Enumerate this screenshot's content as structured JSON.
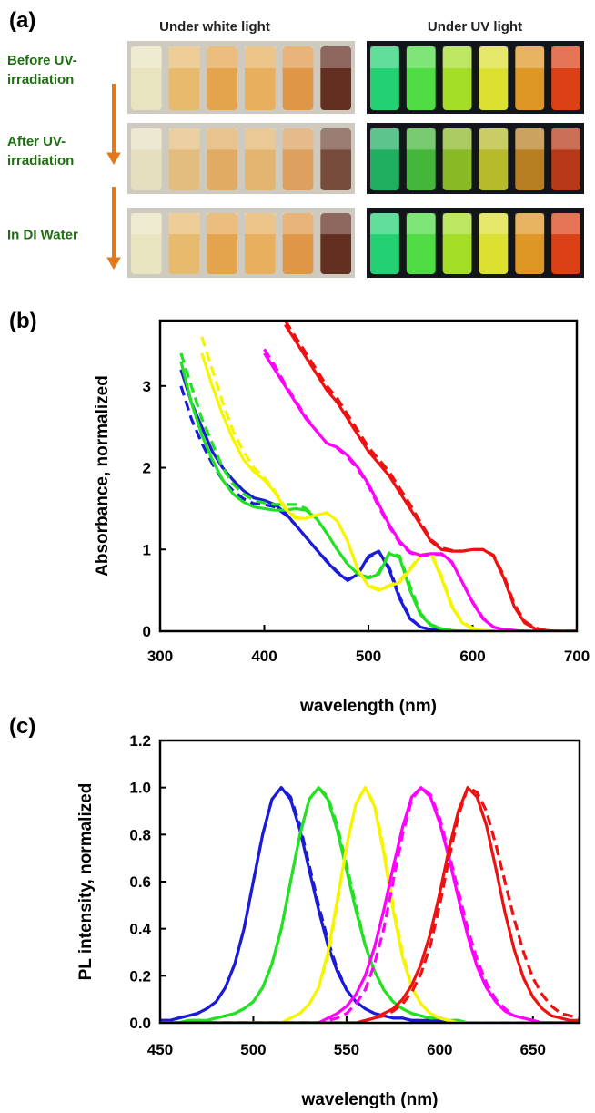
{
  "panel_a": {
    "label": "(a)",
    "column_titles": [
      "Under white light",
      "Under UV light"
    ],
    "row_labels": [
      [
        "Before UV-",
        "irradiation"
      ],
      [
        "After UV-",
        "irradiation"
      ],
      [
        "In DI Water"
      ]
    ]
  },
  "chart_data": [
    {
      "type": "line",
      "label": "(b)",
      "ylabel": "Absorbance, normalized",
      "xlabel": "wavelength (nm)",
      "xlim": [
        300,
        700
      ],
      "xticks": [
        300,
        400,
        500,
        600,
        700
      ],
      "ylim": [
        0,
        3.8
      ],
      "yticks": [
        0,
        1,
        2,
        3
      ],
      "x": [
        310,
        320,
        330,
        340,
        350,
        360,
        370,
        380,
        390,
        400,
        410,
        420,
        430,
        440,
        450,
        460,
        470,
        480,
        490,
        500,
        510,
        520,
        530,
        540,
        550,
        560,
        570,
        580,
        590,
        600,
        610,
        620,
        630,
        640,
        650,
        660,
        670,
        680,
        690,
        700
      ],
      "series": [
        {
          "color": "#1a1ad8",
          "dashed": true,
          "values": [
            null,
            3.0,
            2.6,
            2.3,
            2.05,
            1.85,
            1.72,
            1.62,
            1.56,
            1.55,
            1.52,
            1.43,
            1.3,
            1.15,
            1.0,
            0.86,
            0.73,
            0.63,
            0.7,
            0.9,
            0.97,
            0.78,
            0.42,
            0.16,
            0.05,
            0.02,
            0.01,
            0,
            0,
            0,
            0,
            0,
            0,
            0,
            0,
            0,
            0,
            0,
            0,
            0
          ]
        },
        {
          "color": "#1a1ad8",
          "dashed": false,
          "values": [
            null,
            3.2,
            2.8,
            2.5,
            2.2,
            2.0,
            1.85,
            1.72,
            1.63,
            1.6,
            1.55,
            1.45,
            1.3,
            1.15,
            1.0,
            0.85,
            0.72,
            0.62,
            0.7,
            0.92,
            0.98,
            0.75,
            0.4,
            0.15,
            0.05,
            0.02,
            0.01,
            0,
            0,
            0,
            0,
            0,
            0,
            0,
            0,
            0,
            0,
            0,
            0,
            0
          ]
        },
        {
          "color": "#22e022",
          "dashed": true,
          "values": [
            null,
            3.4,
            3.0,
            2.6,
            2.3,
            2.0,
            1.8,
            1.68,
            1.6,
            1.57,
            1.55,
            1.55,
            1.55,
            1.5,
            1.38,
            1.2,
            1.0,
            0.82,
            0.7,
            0.66,
            0.72,
            0.96,
            0.92,
            0.55,
            0.22,
            0.08,
            0.03,
            0.01,
            0,
            0,
            0,
            0,
            0,
            0,
            0,
            0,
            0,
            0,
            0,
            0
          ]
        },
        {
          "color": "#22e022",
          "dashed": false,
          "values": [
            null,
            3.3,
            2.8,
            2.4,
            2.1,
            1.85,
            1.68,
            1.58,
            1.52,
            1.5,
            1.48,
            1.48,
            1.5,
            1.48,
            1.38,
            1.2,
            1.0,
            0.82,
            0.7,
            0.65,
            0.7,
            0.95,
            0.9,
            0.5,
            0.2,
            0.07,
            0.03,
            0.01,
            0,
            0,
            0,
            0,
            0,
            0,
            0,
            0,
            0,
            0,
            0,
            0
          ]
        },
        {
          "color": "#f5f500",
          "dashed": true,
          "values": [
            null,
            null,
            null,
            3.6,
            3.2,
            2.8,
            2.45,
            2.2,
            2.0,
            1.88,
            1.72,
            1.52,
            1.4,
            1.39,
            1.42,
            1.45,
            1.35,
            1.1,
            0.75,
            0.56,
            0.52,
            0.56,
            0.62,
            0.77,
            0.93,
            0.96,
            0.68,
            0.32,
            0.11,
            0.04,
            0.01,
            0,
            0,
            0,
            0,
            0,
            0,
            0,
            0,
            0
          ]
        },
        {
          "color": "#f5f500",
          "dashed": false,
          "values": [
            null,
            null,
            null,
            3.4,
            3.0,
            2.65,
            2.35,
            2.1,
            1.95,
            1.85,
            1.7,
            1.5,
            1.38,
            1.38,
            1.42,
            1.45,
            1.35,
            1.1,
            0.75,
            0.55,
            0.5,
            0.55,
            0.6,
            0.75,
            0.92,
            0.95,
            0.65,
            0.3,
            0.1,
            0.03,
            0.01,
            0,
            0,
            0,
            0,
            0,
            0,
            0,
            0,
            0
          ]
        },
        {
          "color": "#ff00ff",
          "dashed": true,
          "values": [
            null,
            null,
            null,
            null,
            null,
            null,
            null,
            null,
            null,
            3.45,
            3.25,
            3.02,
            2.82,
            2.62,
            2.45,
            2.3,
            2.24,
            2.13,
            1.98,
            1.78,
            1.52,
            1.28,
            1.08,
            0.96,
            0.92,
            0.94,
            0.94,
            0.84,
            0.6,
            0.36,
            0.16,
            0.05,
            0.02,
            0.01,
            0,
            0,
            0,
            0,
            0,
            0
          ]
        },
        {
          "color": "#ff00ff",
          "dashed": false,
          "values": [
            null,
            null,
            null,
            null,
            null,
            null,
            null,
            null,
            null,
            3.4,
            3.2,
            3.0,
            2.8,
            2.6,
            2.45,
            2.3,
            2.25,
            2.15,
            2.0,
            1.8,
            1.55,
            1.3,
            1.1,
            0.97,
            0.93,
            0.95,
            0.95,
            0.85,
            0.6,
            0.35,
            0.15,
            0.05,
            0.02,
            0.01,
            0,
            0,
            0,
            0,
            0,
            0
          ]
        },
        {
          "color": "#ee1111",
          "dashed": true,
          "values": [
            null,
            null,
            null,
            null,
            null,
            null,
            null,
            null,
            null,
            null,
            null,
            3.8,
            3.6,
            3.4,
            3.2,
            3.0,
            2.85,
            2.65,
            2.45,
            2.25,
            2.1,
            1.95,
            1.75,
            1.55,
            1.33,
            1.12,
            1.02,
            0.99,
            0.98,
            1.0,
            1.0,
            0.93,
            0.68,
            0.33,
            0.12,
            0.04,
            0.01,
            0,
            0,
            0
          ]
        },
        {
          "color": "#ee1111",
          "dashed": false,
          "values": [
            null,
            null,
            null,
            null,
            null,
            null,
            null,
            null,
            null,
            null,
            null,
            3.75,
            3.55,
            3.35,
            3.15,
            2.95,
            2.8,
            2.6,
            2.4,
            2.2,
            2.05,
            1.9,
            1.7,
            1.5,
            1.3,
            1.1,
            1.0,
            0.98,
            0.98,
            1.0,
            1.0,
            0.92,
            0.65,
            0.3,
            0.1,
            0.03,
            0.01,
            0,
            0,
            0
          ]
        }
      ]
    },
    {
      "type": "line",
      "label": "(c)",
      "ylabel": "PL intensity, normalized",
      "xlabel": "wavelength (nm)",
      "xlim": [
        450,
        675
      ],
      "xticks": [
        450,
        500,
        550,
        600,
        650
      ],
      "ylim": [
        0,
        1.2
      ],
      "yticks": [
        {
          "value": 0,
          "label": "0.0"
        },
        0.2,
        0.4,
        0.6,
        0.8,
        {
          "value": 1,
          "label": "1.0"
        },
        1.2
      ],
      "x": [
        450,
        455,
        460,
        465,
        470,
        475,
        480,
        485,
        490,
        495,
        500,
        505,
        510,
        515,
        520,
        525,
        530,
        535,
        540,
        545,
        550,
        555,
        560,
        565,
        570,
        575,
        580,
        585,
        590,
        595,
        600,
        605,
        610,
        615,
        620,
        625,
        630,
        635,
        640,
        645,
        650,
        655,
        660,
        665,
        670,
        675
      ],
      "series": [
        {
          "color": "#1a1ad8",
          "dashed": true,
          "values": [
            0.01,
            0.01,
            0.02,
            0.03,
            0.04,
            0.06,
            0.09,
            0.15,
            0.25,
            0.4,
            0.6,
            0.8,
            0.95,
            1.0,
            0.96,
            0.84,
            0.67,
            0.5,
            0.35,
            0.23,
            0.14,
            0.09,
            0.06,
            0.04,
            0.03,
            0.02,
            0.02,
            0.01,
            0.01,
            0.01,
            0.01,
            0,
            0,
            0,
            0,
            0,
            0,
            0,
            0,
            0,
            0,
            0,
            0,
            0,
            0,
            0
          ]
        },
        {
          "color": "#1a1ad8",
          "dashed": false,
          "values": [
            0.01,
            0.01,
            0.02,
            0.03,
            0.04,
            0.06,
            0.09,
            0.15,
            0.25,
            0.4,
            0.6,
            0.8,
            0.95,
            1.0,
            0.95,
            0.82,
            0.65,
            0.48,
            0.33,
            0.22,
            0.14,
            0.09,
            0.06,
            0.04,
            0.03,
            0.02,
            0.02,
            0.01,
            0.01,
            0.01,
            0.01,
            0,
            0,
            0,
            0,
            0,
            0,
            0,
            0,
            0,
            0,
            0,
            0,
            0,
            0,
            0
          ]
        },
        {
          "color": "#22e022",
          "dashed": true,
          "values": [
            0,
            0,
            0,
            0.01,
            0.01,
            0.01,
            0.02,
            0.03,
            0.04,
            0.06,
            0.09,
            0.15,
            0.25,
            0.4,
            0.6,
            0.8,
            0.95,
            1.0,
            0.96,
            0.84,
            0.67,
            0.5,
            0.33,
            0.22,
            0.14,
            0.09,
            0.06,
            0.04,
            0.03,
            0.02,
            0.02,
            0.01,
            0.01,
            0,
            0,
            0,
            0,
            0,
            0,
            0,
            0,
            0,
            0,
            0,
            0,
            0
          ]
        },
        {
          "color": "#22e022",
          "dashed": false,
          "values": [
            0,
            0,
            0,
            0.01,
            0.01,
            0.01,
            0.02,
            0.03,
            0.04,
            0.06,
            0.09,
            0.15,
            0.25,
            0.4,
            0.6,
            0.8,
            0.95,
            1.0,
            0.95,
            0.82,
            0.65,
            0.48,
            0.33,
            0.22,
            0.14,
            0.09,
            0.06,
            0.04,
            0.03,
            0.02,
            0.02,
            0.01,
            0.01,
            0,
            0,
            0,
            0,
            0,
            0,
            0,
            0,
            0,
            0,
            0,
            0,
            0
          ]
        },
        {
          "color": "#f5f500",
          "dashed": true,
          "values": [
            0,
            0,
            0,
            0,
            0,
            0,
            0,
            0,
            0,
            0,
            0,
            0,
            0,
            0,
            0.02,
            0.04,
            0.08,
            0.15,
            0.28,
            0.5,
            0.75,
            0.93,
            1.0,
            0.93,
            0.74,
            0.5,
            0.3,
            0.15,
            0.08,
            0.04,
            0.02,
            0.01,
            0,
            0,
            0,
            0,
            0,
            0,
            0,
            0,
            0,
            0,
            0,
            0,
            0,
            0
          ]
        },
        {
          "color": "#f5f500",
          "dashed": false,
          "values": [
            0,
            0,
            0,
            0,
            0,
            0,
            0,
            0,
            0,
            0,
            0,
            0,
            0,
            0,
            0.02,
            0.04,
            0.08,
            0.15,
            0.3,
            0.52,
            0.75,
            0.93,
            1.0,
            0.92,
            0.72,
            0.48,
            0.28,
            0.15,
            0.08,
            0.04,
            0.02,
            0.01,
            0,
            0,
            0,
            0,
            0,
            0,
            0,
            0,
            0,
            0,
            0,
            0,
            0,
            0
          ]
        },
        {
          "color": "#ff00ff",
          "dashed": true,
          "values": [
            0,
            0,
            0,
            0,
            0,
            0,
            0,
            0,
            0,
            0,
            0,
            0,
            0,
            0,
            0,
            0,
            0,
            0,
            0.01,
            0.02,
            0.04,
            0.08,
            0.14,
            0.25,
            0.4,
            0.6,
            0.8,
            0.95,
            1.0,
            0.97,
            0.87,
            0.72,
            0.56,
            0.4,
            0.27,
            0.17,
            0.1,
            0.06,
            0.03,
            0.02,
            0.01,
            0,
            0,
            0,
            0,
            0
          ]
        },
        {
          "color": "#ff00ff",
          "dashed": false,
          "values": [
            0,
            0,
            0,
            0,
            0,
            0,
            0,
            0,
            0,
            0,
            0,
            0,
            0,
            0,
            0,
            0,
            0,
            0,
            0.02,
            0.04,
            0.07,
            0.12,
            0.2,
            0.32,
            0.48,
            0.66,
            0.83,
            0.96,
            1.0,
            0.96,
            0.85,
            0.7,
            0.53,
            0.37,
            0.24,
            0.15,
            0.09,
            0.05,
            0.03,
            0.02,
            0.01,
            0,
            0,
            0,
            0,
            0
          ]
        },
        {
          "color": "#ee1111",
          "dashed": true,
          "values": [
            0,
            0,
            0,
            0,
            0,
            0,
            0,
            0,
            0,
            0,
            0,
            0,
            0,
            0,
            0,
            0,
            0,
            0,
            0,
            0,
            0,
            0,
            0.01,
            0.02,
            0.03,
            0.05,
            0.08,
            0.13,
            0.21,
            0.33,
            0.5,
            0.7,
            0.88,
            1.0,
            0.98,
            0.9,
            0.76,
            0.6,
            0.44,
            0.3,
            0.19,
            0.12,
            0.07,
            0.04,
            0.03,
            0.02
          ]
        },
        {
          "color": "#ee1111",
          "dashed": false,
          "values": [
            0,
            0,
            0,
            0,
            0,
            0,
            0,
            0,
            0,
            0,
            0,
            0,
            0,
            0,
            0,
            0,
            0,
            0,
            0,
            0,
            0,
            0,
            0.01,
            0.02,
            0.04,
            0.06,
            0.1,
            0.16,
            0.25,
            0.38,
            0.55,
            0.74,
            0.9,
            1.0,
            0.96,
            0.84,
            0.66,
            0.47,
            0.31,
            0.19,
            0.11,
            0.06,
            0.03,
            0.02,
            0.01,
            0.01
          ]
        }
      ]
    }
  ]
}
